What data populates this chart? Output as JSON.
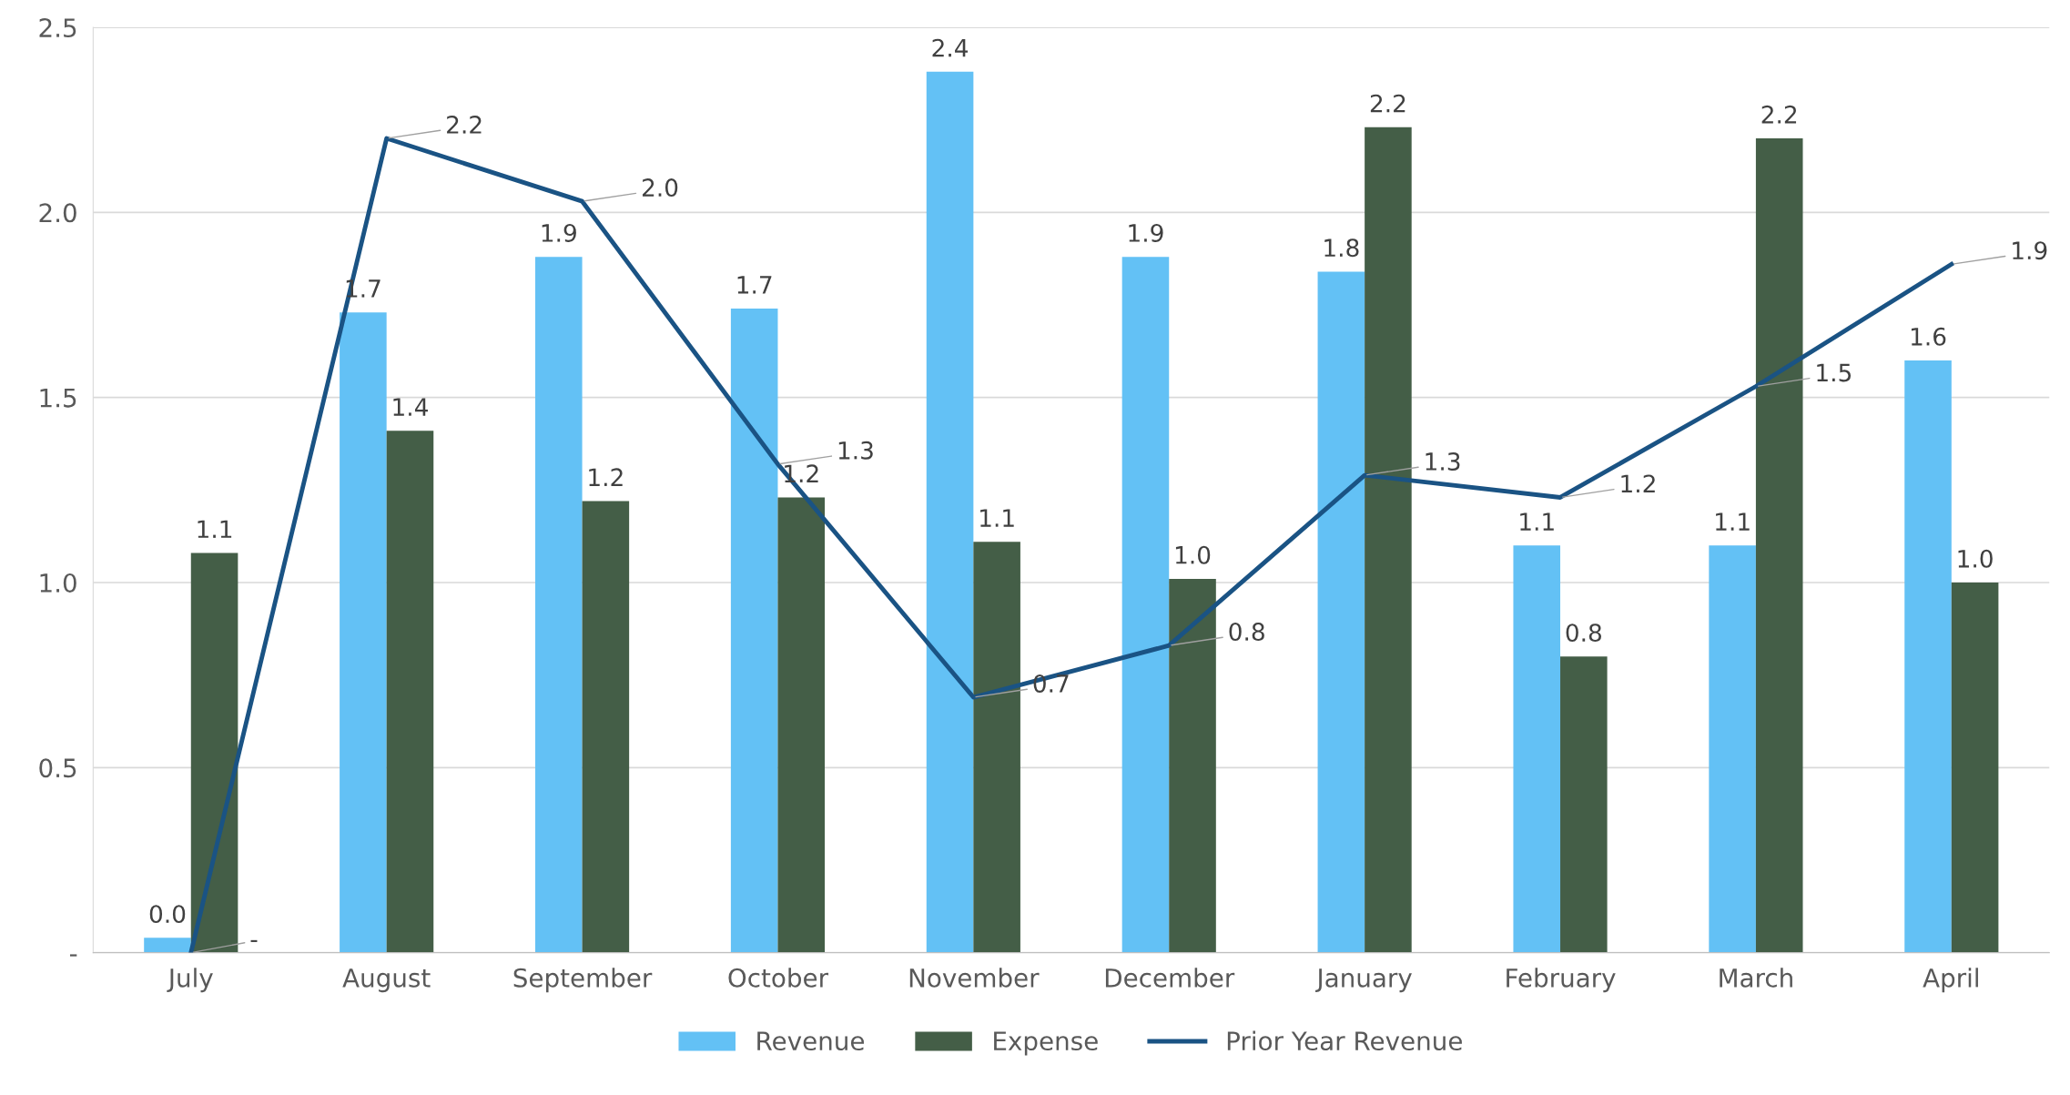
{
  "chart_data": {
    "type": "bar",
    "categories": [
      "July",
      "August",
      "September",
      "October",
      "November",
      "December",
      "January",
      "February",
      "March",
      "April"
    ],
    "series": [
      {
        "name": "Revenue",
        "color": "#63c1f5",
        "values": [
          0.04,
          1.73,
          1.88,
          1.74,
          2.38,
          1.88,
          1.84,
          1.1,
          1.1,
          1.6
        ],
        "value_labels": [
          "0.0",
          "1.7",
          "1.9",
          "1.7",
          "2.4",
          "1.9",
          "1.8",
          "1.1",
          "1.1",
          "1.6"
        ]
      },
      {
        "name": "Expense",
        "color": "#445e47",
        "values": [
          1.08,
          1.41,
          1.22,
          1.23,
          1.11,
          1.01,
          2.23,
          0.8,
          2.2,
          1.0
        ],
        "value_labels": [
          "1.1",
          "1.4",
          "1.2",
          "1.2",
          "1.1",
          "1.0",
          "2.2",
          "0.8",
          "2.2",
          "1.0"
        ]
      },
      {
        "name": "Prior Year Revenue",
        "type": "line",
        "color": "#1a5384",
        "values": [
          0.0,
          2.2,
          2.03,
          1.32,
          0.69,
          0.83,
          1.29,
          1.23,
          1.53,
          1.86
        ],
        "value_labels": [
          "-",
          "2.2",
          "2.0",
          "1.3",
          "0.7",
          "0.8",
          "1.3",
          "1.2",
          "1.5",
          "1.9"
        ]
      }
    ],
    "ylim": [
      0,
      2.5
    ],
    "yticks": [
      {
        "value": 0,
        "label": "-"
      },
      {
        "value": 0.5,
        "label": "0.5"
      },
      {
        "value": 1.0,
        "label": "1.0"
      },
      {
        "value": 1.5,
        "label": "1.5"
      },
      {
        "value": 2.0,
        "label": "2.0"
      },
      {
        "value": 2.5,
        "label": "2.5"
      }
    ],
    "grid": "y",
    "legend": "bottom",
    "marker": "none",
    "line_style": "solid"
  }
}
